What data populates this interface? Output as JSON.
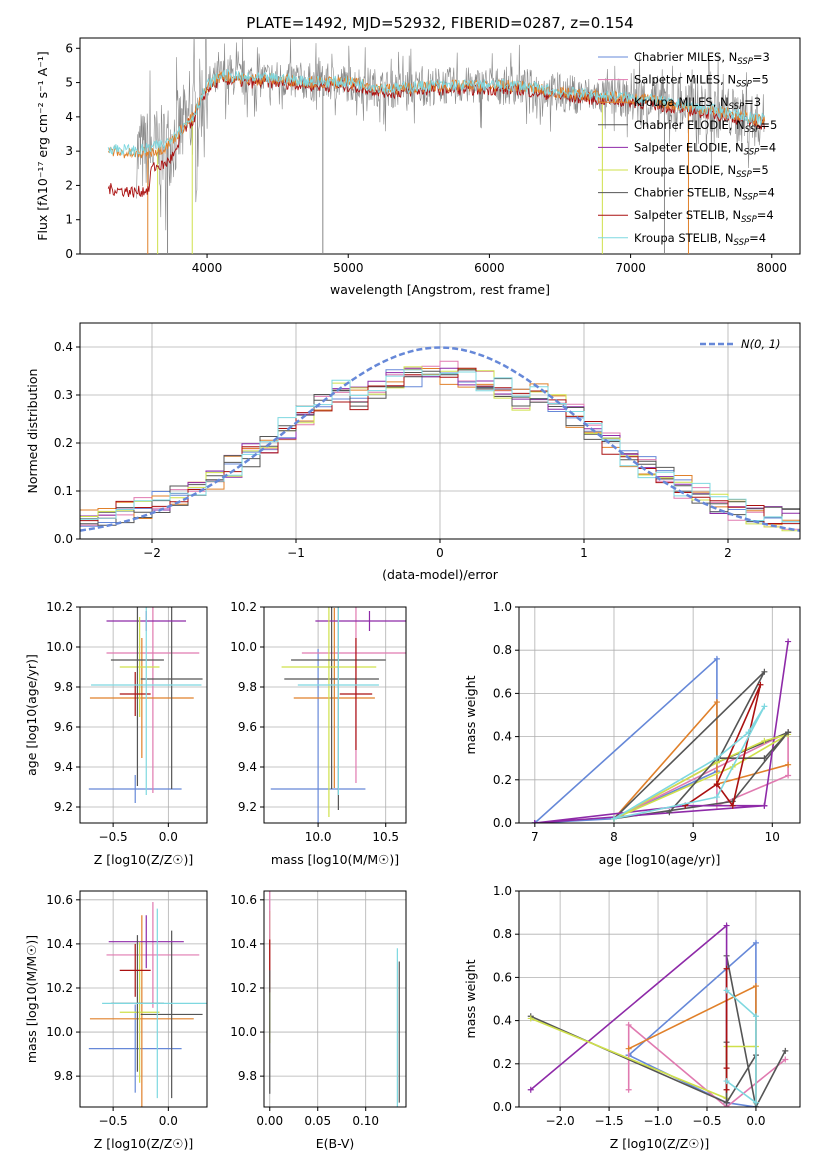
{
  "colors": {
    "chabrier_miles": "#6688d8",
    "salpeter_miles": "#e07ab0",
    "kroupa_miles": "#e0802a",
    "chabrier_elodie": "#555555",
    "salpeter_elodie": "#8e2aa8",
    "kroupa_elodie": "#cfe04a",
    "chabrier_stelib": "#555555",
    "salpeter_stelib": "#aa1111",
    "kroupa_stelib": "#7ed8e0",
    "observed": "#888888",
    "gaussian": "#6688d8"
  },
  "chart_data": [
    {
      "id": "spectrum",
      "type": "line",
      "title": "PLATE=1492, MJD=52932, FIBERID=0287, z=0.154",
      "xlabel": "wavelength [Angstrom, rest frame]",
      "ylabel": "Flux [fλ10⁻¹⁷ erg cm⁻² s⁻¹ A⁻¹]",
      "xlim": [
        3100,
        8200
      ],
      "ylim": [
        0,
        6.3
      ],
      "xticks": [
        "4000",
        "5000",
        "6000",
        "7000",
        "8000"
      ],
      "yticks": [
        "0",
        "1",
        "2",
        "3",
        "4",
        "5",
        "6"
      ],
      "legend_position": "top-right",
      "legend": [
        "Chabrier MILES, N_SSP=3",
        "Salpeter MILES, N_SSP=5",
        "Kroupa MILES, N_SSP=3",
        "Chabrier ELODIE, N_SSP=5",
        "Salpeter ELODIE, N_SSP=4",
        "Kroupa ELODIE, N_SSP=5",
        "Chabrier STELIB, N_SSP=4",
        "Salpeter STELIB, N_SSP=4",
        "Kroupa STELIB, N_SSP=4"
      ],
      "continuum": {
        "x": [
          3300,
          3500,
          3700,
          3900,
          4000,
          4100,
          4300,
          4500,
          4800,
          5000,
          5300,
          5600,
          5900,
          6200,
          6500,
          6800,
          7100,
          7400,
          7700,
          7900
        ],
        "y": [
          3.0,
          2.9,
          3.1,
          4.0,
          4.9,
          5.2,
          5.1,
          5.1,
          5.0,
          5.0,
          4.8,
          4.9,
          4.9,
          4.9,
          4.7,
          4.6,
          4.5,
          4.3,
          4.1,
          3.9
        ]
      }
    },
    {
      "id": "residuals",
      "type": "line",
      "xlabel": "(data-model)/error",
      "ylabel": "Normed distribution",
      "xlim": [
        -2.5,
        2.5
      ],
      "ylim": [
        0,
        0.45
      ],
      "xticks": [
        "−2",
        "−1",
        "0",
        "1",
        "2"
      ],
      "yticks": [
        "0.0",
        "0.1",
        "0.2",
        "0.3",
        "0.4"
      ],
      "legend": [
        "N(0, 1)"
      ],
      "legend_position": "top-right"
    },
    {
      "id": "age_vs_z",
      "type": "scatter",
      "xlabel": "Z [log10(Z/Z☉)]",
      "ylabel": "age [log10(age/yr)]",
      "xlim": [
        -0.8,
        0.35
      ],
      "ylim": [
        9.12,
        10.2
      ],
      "xticks": [
        "−0.5",
        "0.0"
      ],
      "yticks": [
        "9.2",
        "9.4",
        "9.6",
        "9.8",
        "10.0",
        "10.2"
      ],
      "points": [
        {
          "x": -0.3,
          "xerr": 0.42,
          "y": 9.29,
          "yerr": 0.07,
          "c": "chabrier_miles"
        },
        {
          "x": -0.14,
          "xerr": 0.42,
          "y": 9.97,
          "yerr": 0.7,
          "c": "salpeter_miles"
        },
        {
          "x": -0.24,
          "xerr": 0.47,
          "y": 9.745,
          "yerr": 0.3,
          "c": "kroupa_miles"
        },
        {
          "x": 0.03,
          "xerr": 0.28,
          "y": 9.84,
          "yerr": 0.55,
          "c": "chabrier_elodie"
        },
        {
          "x": -0.2,
          "xerr": 0.36,
          "y": 10.13,
          "yerr": 0.05,
          "c": "salpeter_elodie"
        },
        {
          "x": -0.26,
          "xerr": 0.18,
          "y": 9.9,
          "yerr": 0.25,
          "c": "kroupa_elodie"
        },
        {
          "x": -0.28,
          "xerr": 0.24,
          "y": 9.935,
          "yerr": 0.63,
          "c": "chabrier_stelib"
        },
        {
          "x": -0.3,
          "xerr": 0.14,
          "y": 9.765,
          "yerr": 0.11,
          "c": "salpeter_stelib"
        },
        {
          "x": -0.2,
          "xerr": 0.5,
          "y": 9.81,
          "yerr": 0.55,
          "c": "kroupa_stelib"
        }
      ]
    },
    {
      "id": "age_vs_mass",
      "type": "scatter",
      "xlabel": "mass [log10(M/M☉)]",
      "ylabel": "",
      "xlim": [
        9.6,
        10.65
      ],
      "ylim": [
        9.12,
        10.2
      ],
      "xticks": [
        "10.0",
        "10.5"
      ],
      "yticks": [
        "9.2",
        "9.4",
        "9.6",
        "9.8",
        "10.0",
        "10.2"
      ],
      "points": [
        {
          "x": 10.0,
          "xerr": 0.35,
          "y": 9.29,
          "yerr": 0.7,
          "c": "chabrier_miles"
        },
        {
          "x": 10.28,
          "xerr": 0.4,
          "y": 9.97,
          "yerr": 0.65,
          "c": "salpeter_miles"
        },
        {
          "x": 10.12,
          "xerr": 0.3,
          "y": 9.745,
          "yerr": 0.45,
          "c": "kroupa_miles"
        },
        {
          "x": 10.1,
          "xerr": 0.35,
          "y": 9.84,
          "yerr": 0.55,
          "c": "chabrier_elodie"
        },
        {
          "x": 10.38,
          "xerr": 0.4,
          "y": 10.13,
          "yerr": 0.05,
          "c": "salpeter_elodie"
        },
        {
          "x": 10.08,
          "xerr": 0.35,
          "y": 9.9,
          "yerr": 0.75,
          "c": "kroupa_elodie"
        },
        {
          "x": 10.15,
          "xerr": 0.35,
          "y": 9.935,
          "yerr": 0.75,
          "c": "chabrier_stelib"
        },
        {
          "x": 10.28,
          "xerr": 0.12,
          "y": 9.765,
          "yerr": 0.28,
          "c": "salpeter_stelib"
        },
        {
          "x": 10.15,
          "xerr": 0.3,
          "y": 9.81,
          "yerr": 0.55,
          "c": "kroupa_stelib"
        }
      ]
    },
    {
      "id": "weight_vs_age",
      "type": "line",
      "xlabel": "age [log10(age/yr)]",
      "ylabel": "mass weight",
      "xlim": [
        6.8,
        10.35
      ],
      "ylim": [
        0,
        1.0
      ],
      "xticks": [
        "7",
        "8",
        "9",
        "10"
      ],
      "yticks": [
        "0.0",
        "0.2",
        "0.4",
        "0.6",
        "0.8",
        "1.0"
      ],
      "series": [
        {
          "c": "chabrier_miles",
          "x": [
            7.0,
            9.3,
            9.3,
            8.0,
            7.0
          ],
          "y": [
            0.0,
            0.76,
            0.24,
            0.02,
            0.0
          ]
        },
        {
          "c": "salpeter_miles",
          "x": [
            8.0,
            10.2,
            10.2,
            9.3,
            9.3,
            8.0
          ],
          "y": [
            0.02,
            0.42,
            0.22,
            0.08,
            0.28,
            0.02
          ]
        },
        {
          "c": "kroupa_miles",
          "x": [
            8.0,
            9.3,
            9.3,
            10.2,
            9.3
          ],
          "y": [
            0.02,
            0.56,
            0.18,
            0.27,
            0.18
          ]
        },
        {
          "c": "chabrier_elodie",
          "x": [
            8.0,
            9.9,
            9.3,
            10.2,
            9.5,
            8.0
          ],
          "y": [
            0.02,
            0.7,
            0.28,
            0.42,
            0.1,
            0.02
          ]
        },
        {
          "c": "salpeter_elodie",
          "x": [
            7.0,
            9.9,
            10.2,
            9.9,
            8.9,
            7.0
          ],
          "y": [
            0.0,
            0.08,
            0.84,
            0.08,
            0.08,
            0.0
          ]
        },
        {
          "c": "kroupa_elodie",
          "x": [
            8.0,
            9.3,
            9.9,
            10.2,
            9.5,
            8.0
          ],
          "y": [
            0.02,
            0.28,
            0.38,
            0.41,
            0.26,
            0.02
          ]
        },
        {
          "c": "chabrier_stelib",
          "x": [
            8.7,
            9.3,
            9.9,
            10.2
          ],
          "y": [
            0.05,
            0.3,
            0.3,
            0.42
          ]
        },
        {
          "c": "salpeter_stelib",
          "x": [
            8.9,
            9.3,
            9.5,
            9.85,
            9.3
          ],
          "y": [
            0.08,
            0.18,
            0.08,
            0.64,
            0.18
          ]
        },
        {
          "c": "kroupa_stelib",
          "x": [
            8.0,
            9.3,
            9.7,
            9.9,
            9.3,
            8.0
          ],
          "y": [
            0.02,
            0.3,
            0.42,
            0.54,
            0.12,
            0.02
          ]
        }
      ]
    },
    {
      "id": "mass_vs_z",
      "type": "scatter",
      "xlabel": "Z [log10(Z/Z☉)]",
      "ylabel": "mass [log10(M/M☉)]",
      "xlim": [
        -0.8,
        0.35
      ],
      "ylim": [
        9.66,
        10.64
      ],
      "xticks": [
        "−0.5",
        "0.0"
      ],
      "yticks": [
        "9.8",
        "10.0",
        "10.2",
        "10.4",
        "10.6"
      ],
      "points": [
        {
          "x": -0.3,
          "xerr": 0.42,
          "y": 9.925,
          "yerr": 0.2,
          "c": "chabrier_miles"
        },
        {
          "x": -0.14,
          "xerr": 0.42,
          "y": 10.35,
          "yerr": 0.24,
          "c": "salpeter_miles"
        },
        {
          "x": -0.24,
          "xerr": 0.47,
          "y": 10.06,
          "yerr": 0.47,
          "c": "kroupa_miles"
        },
        {
          "x": 0.03,
          "xerr": 0.28,
          "y": 10.08,
          "yerr": 0.38,
          "c": "chabrier_elodie"
        },
        {
          "x": -0.2,
          "xerr": 0.34,
          "y": 10.41,
          "yerr": 0.12,
          "c": "salpeter_elodie"
        },
        {
          "x": -0.26,
          "xerr": 0.18,
          "y": 10.09,
          "yerr": 0.32,
          "c": "kroupa_elodie"
        },
        {
          "x": -0.28,
          "xerr": 0.24,
          "y": 10.13,
          "yerr": 0.31,
          "c": "chabrier_stelib"
        },
        {
          "x": -0.3,
          "xerr": 0.14,
          "y": 10.28,
          "yerr": 0.12,
          "c": "salpeter_stelib"
        },
        {
          "x": -0.1,
          "xerr": 0.5,
          "y": 10.13,
          "yerr": 0.43,
          "c": "kroupa_stelib"
        }
      ]
    },
    {
      "id": "mass_vs_ebv",
      "type": "scatter",
      "xlabel": "E(B-V)",
      "ylabel": "",
      "xlim": [
        -0.006,
        0.142
      ],
      "ylim": [
        9.66,
        10.64
      ],
      "xticks": [
        "0.00",
        "0.05",
        "0.10"
      ],
      "yticks": [
        "9.8",
        "10.0",
        "10.2",
        "10.4",
        "10.6"
      ],
      "points": [
        {
          "x": 0.0,
          "y": 10.25,
          "yerr": 0.3,
          "c": "kroupa_elodie"
        },
        {
          "x": 0.0,
          "y": 10.45,
          "yerr": 0.2,
          "c": "salpeter_miles"
        },
        {
          "x": 0.0,
          "y": 10.3,
          "yerr": 0.12,
          "c": "salpeter_stelib"
        },
        {
          "x": 0.0,
          "y": 10.0,
          "yerr": 0.28,
          "c": "chabrier_elodie"
        },
        {
          "x": 0.135,
          "y": 10.0,
          "yerr": 0.32,
          "c": "chabrier_elodie"
        },
        {
          "x": 0.133,
          "y": 10.0,
          "yerr": 0.38,
          "c": "kroupa_stelib"
        }
      ]
    },
    {
      "id": "weight_vs_z",
      "type": "line",
      "xlabel": "Z [log10(Z/Z☉)]",
      "ylabel": "mass weight",
      "xlim": [
        -2.42,
        0.45
      ],
      "ylim": [
        0,
        1.0
      ],
      "xticks": [
        "−2.0",
        "−1.5",
        "−1.0",
        "−0.5",
        "0.0"
      ],
      "yticks": [
        "0.0",
        "0.2",
        "0.4",
        "0.6",
        "0.8",
        "1.0"
      ],
      "series": [
        {
          "c": "chabrier_miles",
          "x": [
            -1.3,
            0.0,
            0.0,
            -0.3,
            -1.3
          ],
          "y": [
            0.24,
            0.76,
            0.0,
            0.02,
            0.24
          ]
        },
        {
          "c": "salpeter_miles",
          "x": [
            -1.3,
            -1.3,
            -0.3,
            0.3,
            -0.3
          ],
          "y": [
            0.08,
            0.38,
            0.0,
            0.22,
            0.0
          ]
        },
        {
          "c": "kroupa_miles",
          "x": [
            -1.3,
            0.0,
            0.0
          ],
          "y": [
            0.27,
            0.56,
            0.02
          ]
        },
        {
          "c": "chabrier_elodie",
          "x": [
            -2.3,
            -0.3,
            -0.3,
            0.0,
            0.3,
            0.0
          ],
          "y": [
            0.42,
            0.02,
            0.7,
            0.0,
            0.26,
            0.0
          ]
        },
        {
          "c": "salpeter_elodie",
          "x": [
            -2.3,
            -0.3,
            -0.3
          ],
          "y": [
            0.08,
            0.84,
            0.02
          ]
        },
        {
          "c": "kroupa_elodie",
          "x": [
            -2.3,
            -0.3,
            -0.3,
            0.0
          ],
          "y": [
            0.41,
            0.04,
            0.28,
            0.28
          ]
        },
        {
          "c": "chabrier_stelib",
          "x": [
            -0.3,
            -0.3,
            0.0
          ],
          "y": [
            0.3,
            0.02,
            0.24
          ]
        },
        {
          "c": "salpeter_stelib",
          "x": [
            -0.3,
            -0.3,
            -0.3
          ],
          "y": [
            0.08,
            0.64,
            0.18
          ]
        },
        {
          "c": "kroupa_stelib",
          "x": [
            -0.3,
            0.0,
            0.0,
            -0.3
          ],
          "y": [
            0.54,
            0.42,
            0.02,
            0.12
          ]
        }
      ]
    }
  ]
}
